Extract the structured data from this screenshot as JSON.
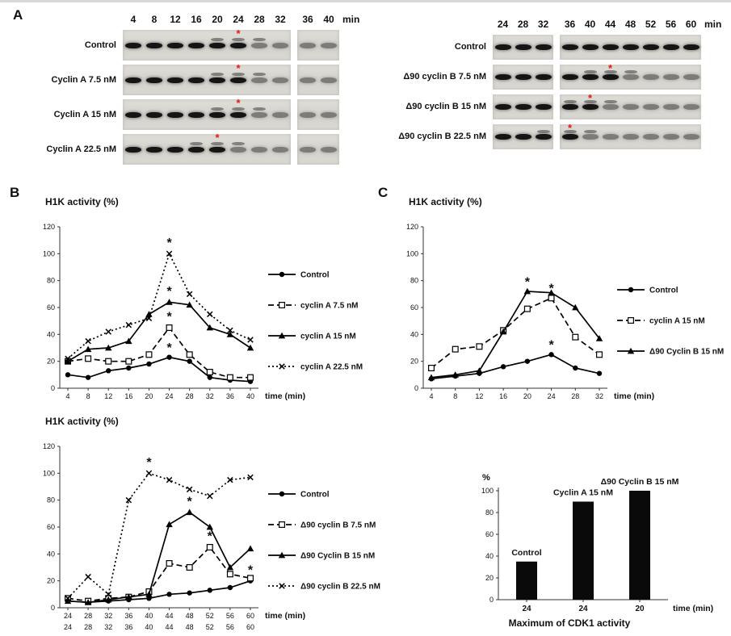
{
  "figure": {
    "panel_a_label": "A",
    "panel_b_label": "B",
    "panel_c_label": "C"
  },
  "colors": {
    "asterisk_red": "#e8190f",
    "band_dark": "#151515",
    "gel_background": "#d8d6d0",
    "series_black": "#000000",
    "bar_black": "#0a0a0a"
  },
  "blots": [
    {
      "name": "cyclin-a-blot",
      "times": [
        4,
        8,
        12,
        16,
        20,
        24,
        28,
        32
      ],
      "times_after_gap": [
        36,
        40
      ],
      "unit": "min",
      "rows": [
        {
          "label": "Control",
          "asterisk_time": 24
        },
        {
          "label": "Cyclin A 7.5 nM",
          "asterisk_time": 24
        },
        {
          "label": "Cyclin A 15 nM",
          "asterisk_time": 24
        },
        {
          "label": "Cyclin A 22.5 nM",
          "asterisk_time": 20
        }
      ]
    },
    {
      "name": "delta90-cyclin-b-blot",
      "times": [
        24,
        28,
        32
      ],
      "times_after_gap": [
        36,
        40,
        44,
        48,
        52,
        56,
        60
      ],
      "unit": "min",
      "rows": [
        {
          "label": "Control",
          "asterisk_time": null
        },
        {
          "label": "Δ90 cyclin B 7.5 nM",
          "asterisk_time": 44
        },
        {
          "label": "Δ90 cyclin B 15 nM",
          "asterisk_time": 40
        },
        {
          "label": "Δ90 cyclin B 22.5 nM",
          "asterisk_time": 36
        }
      ]
    }
  ],
  "chart_data": {
    "b_top": {
      "type": "line",
      "title": "H1K activity  (%)",
      "xlabel": "time (min)",
      "ylabel": "",
      "x": [
        4,
        8,
        12,
        16,
        20,
        24,
        28,
        32,
        36,
        40
      ],
      "ylim": [
        0,
        120
      ],
      "ytick_step": 20,
      "legend_position": "right",
      "grid": false,
      "series": [
        {
          "name": "Control",
          "marker": "circle",
          "dash": "solid",
          "values": [
            10,
            8,
            13,
            15,
            18,
            23,
            20,
            8,
            6,
            5
          ]
        },
        {
          "name": "cyclin A 7.5 nM",
          "marker": "square-open",
          "dash": "dashed",
          "values": [
            20,
            22,
            20,
            20,
            25,
            45,
            25,
            12,
            8,
            8
          ]
        },
        {
          "name": "cyclin A 15 nM",
          "marker": "triangle",
          "dash": "solid",
          "values": [
            20,
            29,
            30,
            35,
            55,
            64,
            62,
            45,
            40,
            30
          ]
        },
        {
          "name": "cyclin A 22.5 nM",
          "marker": "x",
          "dash": "dotted",
          "values": [
            22,
            35,
            42,
            47,
            52,
            100,
            70,
            55,
            43,
            36
          ]
        }
      ],
      "asterisks": [
        {
          "x": 24,
          "y": 108
        },
        {
          "x": 24,
          "y": 72
        },
        {
          "x": 24,
          "y": 53
        },
        {
          "x": 24,
          "y": 30
        }
      ]
    },
    "b_bottom": {
      "type": "line",
      "title": "H1K activity  (%)",
      "xlabel": "time (min)",
      "ylabel": "",
      "x": [
        24,
        28,
        32,
        36,
        40,
        44,
        48,
        52,
        56,
        60
      ],
      "ylim": [
        0,
        120
      ],
      "ytick_step": 20,
      "legend_position": "right",
      "grid": false,
      "series": [
        {
          "name": "Control",
          "marker": "circle",
          "dash": "solid",
          "values": [
            5,
            4,
            5,
            6,
            7,
            10,
            11,
            13,
            15,
            20
          ]
        },
        {
          "name": "Δ90 cyclin B 7.5 nM",
          "marker": "square-open",
          "dash": "dashed",
          "values": [
            7,
            5,
            7,
            8,
            12,
            33,
            30,
            45,
            25,
            22
          ]
        },
        {
          "name": "Δ90 Cyclin B 15 nM",
          "marker": "triangle",
          "dash": "solid",
          "values": [
            5,
            4,
            6,
            8,
            10,
            62,
            71,
            60,
            30,
            44
          ]
        },
        {
          "name": "Δ90 cyclin B 22.5 nM",
          "marker": "x",
          "dash": "dotted",
          "values": [
            7,
            23,
            10,
            80,
            100,
            95,
            88,
            83,
            95,
            97
          ]
        }
      ],
      "asterisks": [
        {
          "x": 40,
          "y": 108
        },
        {
          "x": 48,
          "y": 79
        },
        {
          "x": 52,
          "y": 53
        },
        {
          "x": 60,
          "y": 28
        }
      ]
    },
    "c_line": {
      "type": "line",
      "title": "H1K activity  (%)",
      "xlabel": "time (min)",
      "ylabel": "",
      "x": [
        4,
        8,
        12,
        16,
        20,
        24,
        28,
        32
      ],
      "ylim": [
        0,
        120
      ],
      "ytick_step": 20,
      "legend_position": "right",
      "grid": false,
      "series": [
        {
          "name": "Control",
          "marker": "circle",
          "dash": "solid",
          "values": [
            7,
            9,
            11,
            16,
            20,
            25,
            15,
            11
          ]
        },
        {
          "name": "cyclin A 15 nM",
          "marker": "square-open",
          "dash": "dashed",
          "values": [
            15,
            29,
            31,
            43,
            59,
            67,
            38,
            25
          ]
        },
        {
          "name": "Δ90 Cyclin B 15 nM",
          "marker": "triangle",
          "dash": "solid",
          "values": [
            8,
            10,
            13,
            42,
            72,
            71,
            60,
            37
          ]
        }
      ],
      "asterisks": [
        {
          "x": 20,
          "y": 79
        },
        {
          "x": 24,
          "y": 74
        },
        {
          "x": 24,
          "y": 32
        }
      ]
    },
    "c_bar": {
      "type": "bar",
      "title": "Maximum of CDK1 activity",
      "xlabel": "time (min)",
      "ylabel": "%",
      "categories": [
        "24",
        "24",
        "20"
      ],
      "values": [
        35,
        90,
        100
      ],
      "bar_labels": [
        "Control",
        "Cyclin A 15 nM",
        "Δ90 Cyclin B 15 nM"
      ],
      "ylim": [
        0,
        100
      ],
      "ytick_step": 20,
      "grid": false
    }
  }
}
